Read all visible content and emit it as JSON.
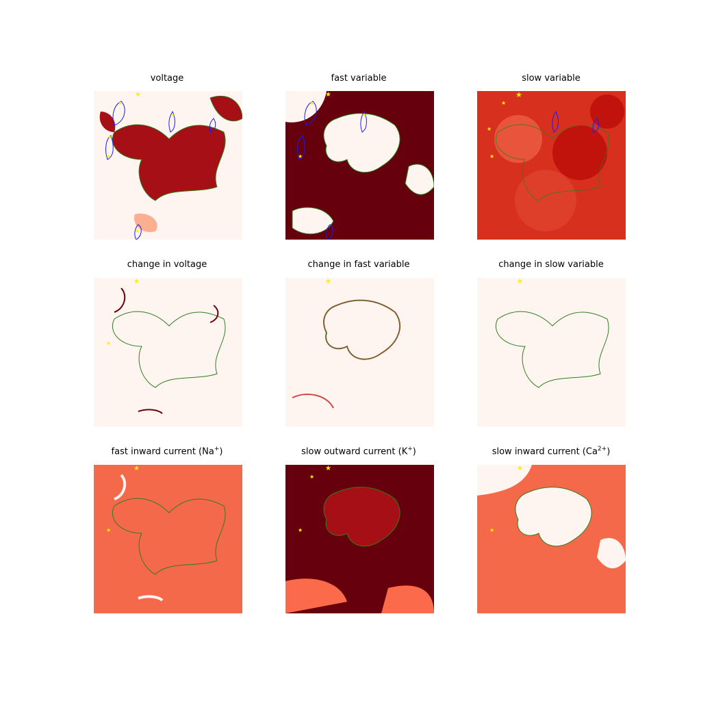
{
  "chart_data": {
    "type": "heatmap",
    "layout": "3x3 grid of field snapshots",
    "colormap": "Reds",
    "overlays": {
      "green_contour": "#2e7d1e",
      "blue_contour": "#1a1aff",
      "markers": {
        "shape": "star",
        "color": "#ffee00"
      }
    },
    "panels": [
      {
        "id": "voltage",
        "title": "voltage"
      },
      {
        "id": "fast",
        "title": "fast variable"
      },
      {
        "id": "slow",
        "title": "slow variable"
      },
      {
        "id": "dvoltage",
        "title": "change in voltage"
      },
      {
        "id": "dfast",
        "title": "change in fast variable"
      },
      {
        "id": "dslow",
        "title": "change in slow variable"
      },
      {
        "id": "na",
        "title": "fast inward current (Na",
        "sup": "+",
        "suffix": ")"
      },
      {
        "id": "k",
        "title": "slow outward current (K",
        "sup": "+",
        "suffix": ")"
      },
      {
        "id": "ca",
        "title": "slow inward current (Ca",
        "sup": "2+",
        "suffix": ")"
      }
    ]
  }
}
